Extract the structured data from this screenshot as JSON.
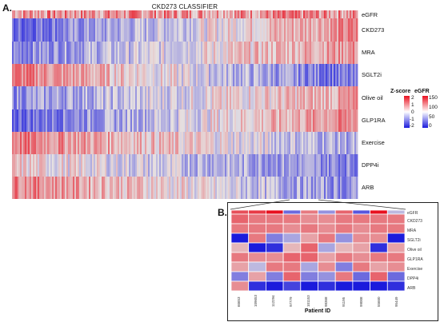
{
  "panel_labels": {
    "a": "A.",
    "b": "B."
  },
  "chart_data": [
    {
      "type": "heatmap",
      "title": "CKD273 CLASSIFIER",
      "rows": [
        "eGFR",
        "CKD273",
        "MRA",
        "SGLT2i",
        "Olive oil",
        "GLP1RA",
        "Exercise",
        "DPP4i",
        "ARB"
      ],
      "row_trends": {
        "eGFR": [
          0.8,
          0.8
        ],
        "CKD273": [
          -1.2,
          0.9
        ],
        "MRA": [
          -0.9,
          0.8
        ],
        "SGLT2i": [
          1.0,
          -1.2
        ],
        "Olive oil": [
          -0.8,
          0.6
        ],
        "GLP1RA": [
          -1.2,
          0.9
        ],
        "Exercise": [
          1.0,
          -0.6
        ],
        "DPP4i": [
          0.2,
          -0.9
        ],
        "ARB": [
          1.0,
          -0.9
        ]
      },
      "legend": {
        "zscore": {
          "title": "Z-score",
          "ticks": [
            "2",
            "1",
            "0",
            "-1",
            "-2"
          ],
          "colors": [
            "#e8101f",
            "#ffffff",
            "#1b1bdc"
          ]
        },
        "egfr": {
          "title": "eGFR",
          "ticks": [
            "150",
            "100",
            "50",
            "0"
          ],
          "colors": [
            "#e8101f",
            "#ffffff",
            "#1b1bdc"
          ]
        }
      }
    },
    {
      "type": "heatmap",
      "xlabel": "Patient ID",
      "rows": [
        "eGFR",
        "CKD273",
        "MRA",
        "SGLT2i",
        "Olive oil",
        "GLP1RA",
        "Exercise",
        "DPP4i",
        "ARB"
      ],
      "columns": [
        "66653",
        "109653",
        "112294",
        "97779",
        "101153",
        "98368",
        "91195",
        "99008",
        "55660",
        "95449"
      ],
      "values": [
        [
          0.7,
          0.8,
          1.0,
          -0.6,
          0.5,
          -0.4,
          0.6,
          -0.7,
          1.0,
          -0.2
        ],
        [
          0.6,
          0.5,
          0.5,
          0.5,
          0.4,
          0.4,
          0.5,
          0.5,
          0.5,
          0.5
        ],
        [
          0.5,
          0.5,
          0.5,
          0.4,
          0.5,
          0.4,
          0.5,
          0.4,
          0.5,
          0.5
        ],
        [
          -1.9,
          0.5,
          -0.5,
          -0.3,
          0.3,
          0.5,
          -0.4,
          0.4,
          0.4,
          -1.4
        ],
        [
          0.2,
          -1.9,
          -0.9,
          0.2,
          0.6,
          -0.3,
          0.2,
          0.3,
          -0.9,
          0.3
        ],
        [
          0.5,
          0.4,
          0.4,
          0.6,
          0.6,
          0.3,
          0.5,
          0.4,
          0.5,
          0.5
        ],
        [
          0.3,
          -0.2,
          0.5,
          0.5,
          -0.3,
          0.4,
          -0.5,
          0.5,
          0.3,
          0.4
        ],
        [
          -0.5,
          0.3,
          -0.5,
          0.6,
          -0.5,
          -0.4,
          0.5,
          -0.6,
          0.6,
          -0.6
        ],
        [
          0.4,
          -0.9,
          -1.8,
          -0.8,
          -1.6,
          -0.9,
          -1.6,
          -1.1,
          -1.8,
          -0.9
        ]
      ]
    }
  ]
}
